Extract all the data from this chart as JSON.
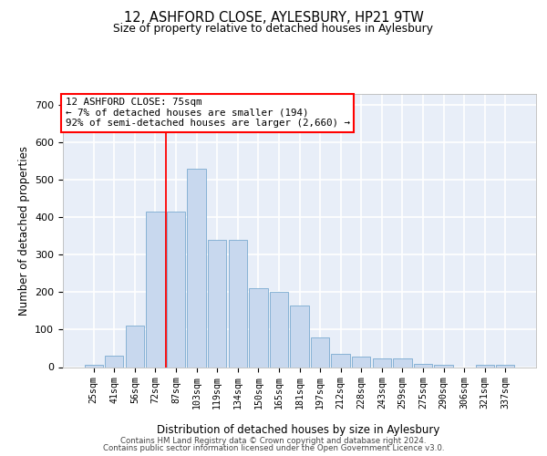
{
  "title_line1": "12, ASHFORD CLOSE, AYLESBURY, HP21 9TW",
  "title_line2": "Size of property relative to detached houses in Aylesbury",
  "xlabel": "Distribution of detached houses by size in Aylesbury",
  "ylabel": "Number of detached properties",
  "categories": [
    "25sqm",
    "41sqm",
    "56sqm",
    "72sqm",
    "87sqm",
    "103sqm",
    "119sqm",
    "134sqm",
    "150sqm",
    "165sqm",
    "181sqm",
    "197sqm",
    "212sqm",
    "228sqm",
    "243sqm",
    "259sqm",
    "275sqm",
    "290sqm",
    "306sqm",
    "321sqm",
    "337sqm"
  ],
  "values": [
    5,
    30,
    110,
    415,
    415,
    530,
    340,
    340,
    210,
    200,
    165,
    80,
    35,
    28,
    22,
    22,
    8,
    5,
    0,
    5,
    5
  ],
  "bar_color": "#c8d8ee",
  "bar_edge_color": "#7aaad0",
  "red_line_index": 3,
  "annotation_text": "12 ASHFORD CLOSE: 75sqm\n← 7% of detached houses are smaller (194)\n92% of semi-detached houses are larger (2,660) →",
  "ylim": [
    0,
    730
  ],
  "yticks": [
    0,
    100,
    200,
    300,
    400,
    500,
    600,
    700
  ],
  "background_color": "#e8eef8",
  "grid_color": "white",
  "footer_line1": "Contains HM Land Registry data © Crown copyright and database right 2024.",
  "footer_line2": "Contains public sector information licensed under the Open Government Licence v3.0."
}
